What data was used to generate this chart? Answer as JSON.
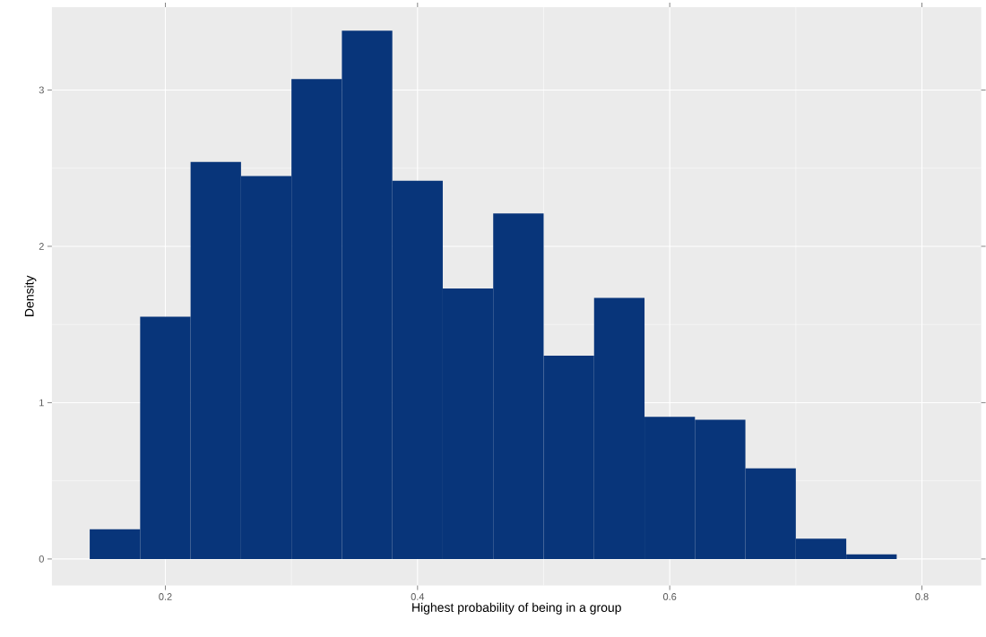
{
  "chart_data": {
    "type": "histogram",
    "xlabel": "Highest probability of being in a group",
    "ylabel": "Density",
    "bins": [
      0.14,
      0.18,
      0.22,
      0.26,
      0.3,
      0.34,
      0.38,
      0.42,
      0.46,
      0.5,
      0.54,
      0.58,
      0.62,
      0.66,
      0.7,
      0.74,
      0.78
    ],
    "values": [
      0.19,
      1.55,
      2.54,
      2.45,
      3.07,
      3.38,
      2.42,
      1.73,
      2.21,
      1.3,
      1.67,
      0.91,
      0.89,
      0.58,
      0.13,
      0.03
    ],
    "color": "#08357a",
    "xlim": [
      0.11,
      0.847
    ],
    "ylim": [
      -0.17,
      3.53
    ],
    "xticks": [
      {
        "value": 0.2,
        "label": "0.2"
      },
      {
        "value": 0.4,
        "label": "0.4"
      },
      {
        "value": 0.6,
        "label": "0.6"
      },
      {
        "value": 0.8,
        "label": "0.8"
      }
    ],
    "yticks": [
      0,
      1,
      2,
      3
    ],
    "grid": true
  }
}
